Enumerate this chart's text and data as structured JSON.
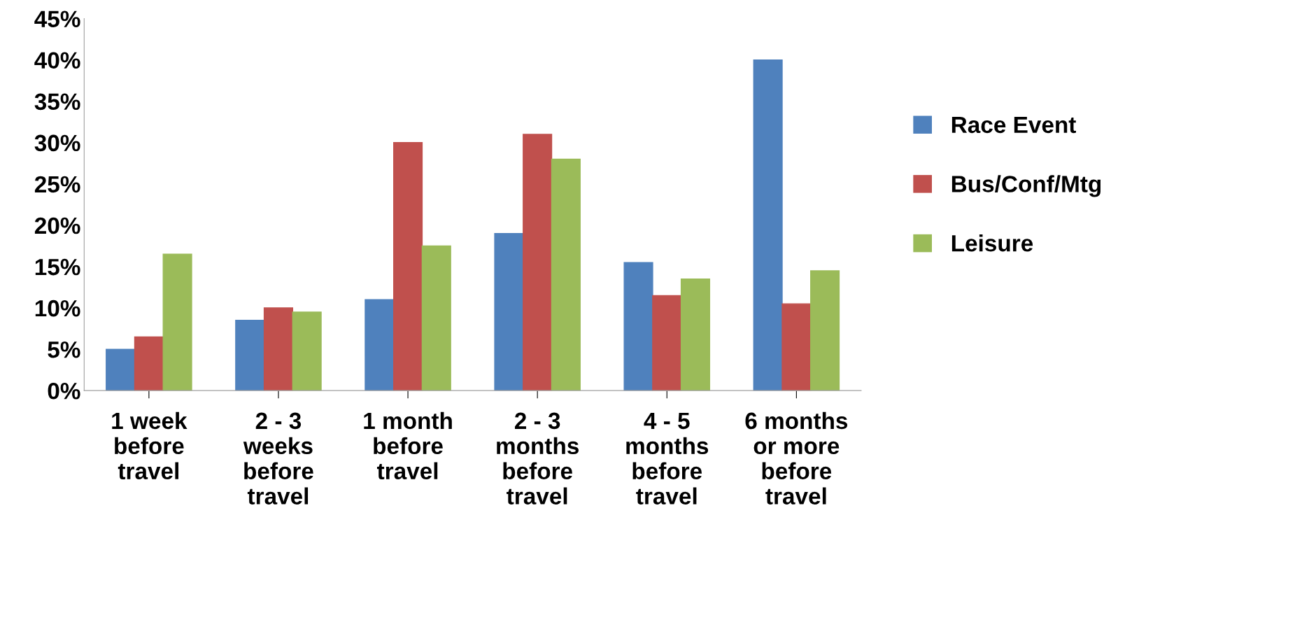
{
  "chart_data": {
    "type": "bar",
    "categories": [
      "1 week\nbefore\ntravel",
      "2 - 3\nweeks\nbefore\ntravel",
      "1 month\nbefore\ntravel",
      "2 - 3\nmonths\nbefore\ntravel",
      "4 - 5\nmonths\nbefore\ntravel",
      "6 months\nor more\nbefore\ntravel"
    ],
    "series": [
      {
        "name": "Race Event",
        "color": "#4f81bd",
        "values": [
          5,
          8.5,
          11,
          19,
          15.5,
          40
        ]
      },
      {
        "name": "Bus/Conf/Mtg",
        "color": "#c0504d",
        "values": [
          6.5,
          10,
          30,
          31,
          11.5,
          10.5
        ]
      },
      {
        "name": "Leisure",
        "color": "#9bbb59",
        "values": [
          16.5,
          9.5,
          17.5,
          28,
          13.5,
          14.5
        ]
      }
    ],
    "ylim": [
      0,
      45
    ],
    "yticks": [
      {
        "value": 0,
        "label": "0%"
      },
      {
        "value": 5,
        "label": "5%"
      },
      {
        "value": 10,
        "label": "10%"
      },
      {
        "value": 15,
        "label": "15%"
      },
      {
        "value": 20,
        "label": "20%"
      },
      {
        "value": 25,
        "label": "25%"
      },
      {
        "value": 30,
        "label": "30%"
      },
      {
        "value": 35,
        "label": "35%"
      },
      {
        "value": 40,
        "label": "40%"
      },
      {
        "value": 45,
        "label": "45%"
      }
    ],
    "grid": false,
    "legend": "right"
  }
}
